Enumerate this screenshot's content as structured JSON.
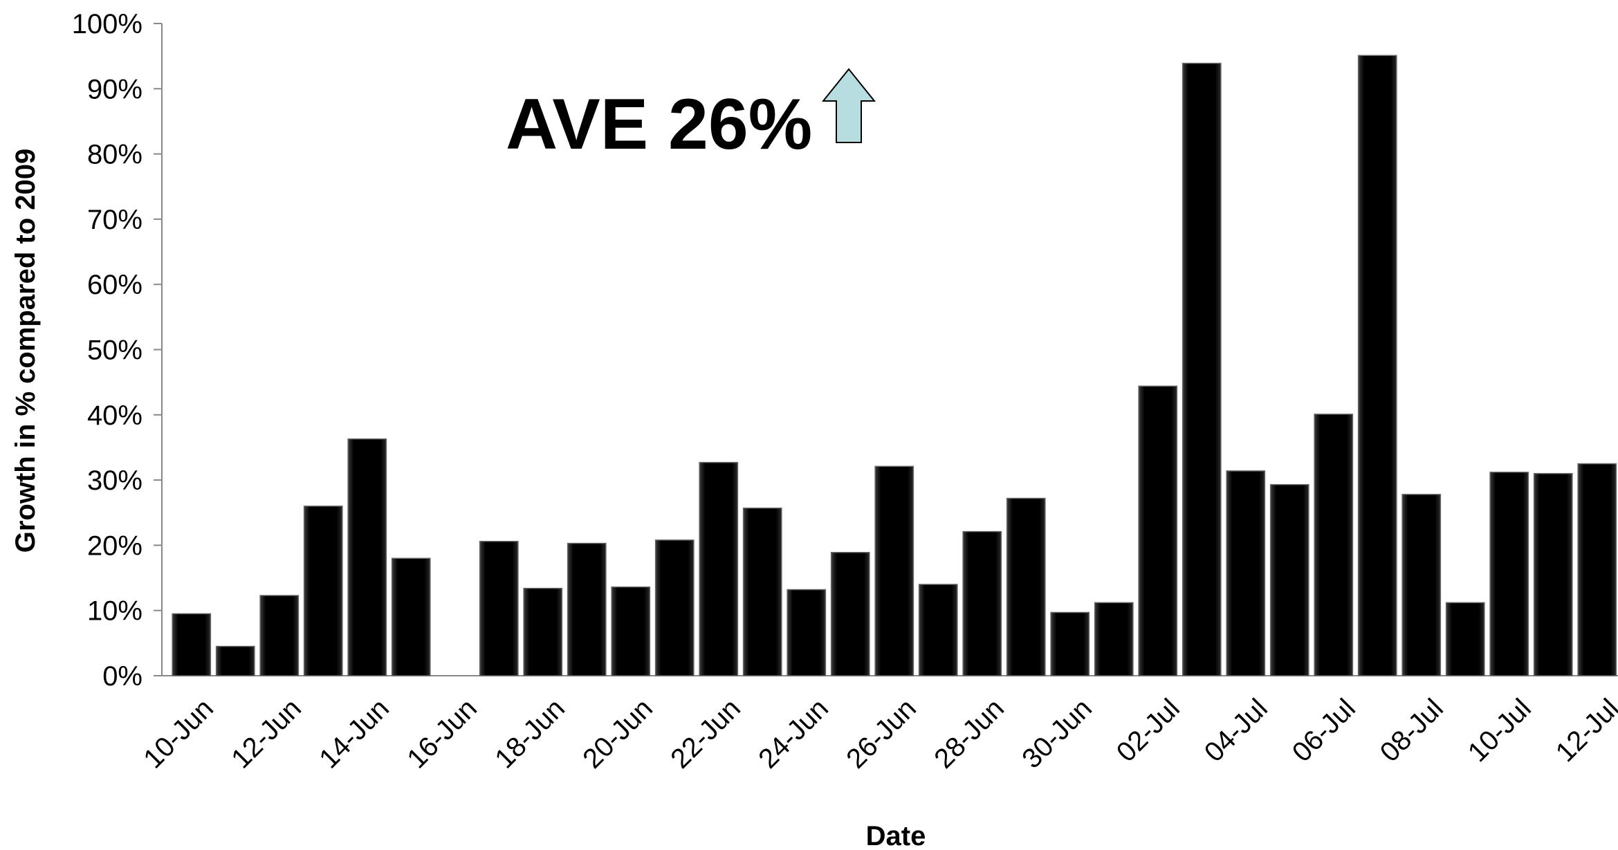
{
  "chart_data": {
    "type": "bar",
    "annotation": "AVE 26%",
    "x_label": "Date",
    "y_label": "Growth in % compared to 2009",
    "categories": [
      "10-Jun",
      null,
      "12-Jun",
      null,
      "14-Jun",
      null,
      "16-Jun",
      null,
      "18-Jun",
      null,
      "20-Jun",
      null,
      "22-Jun",
      null,
      "24-Jun",
      null,
      "26-Jun",
      null,
      "28-Jun",
      null,
      "30-Jun",
      null,
      "02-Jul",
      null,
      "04-Jul",
      null,
      "06-Jul",
      null,
      "08-Jul",
      null,
      "10-Jul",
      null,
      "12-Jul"
    ],
    "values": [
      9.5,
      4.5,
      12.3,
      26,
      36.3,
      18,
      null,
      20.6,
      13.4,
      20.3,
      13.6,
      20.8,
      32.7,
      25.7,
      13.2,
      18.9,
      32.1,
      14,
      22.1,
      27.2,
      9.7,
      11.2,
      44.4,
      93.9,
      31.4,
      29.3,
      40.1,
      95.1,
      27.8,
      11.2,
      31.2,
      31,
      32.5
    ],
    "color": "#0d0d0d",
    "ylim": [
      0,
      100
    ],
    "yticks": [
      {
        "value": 0,
        "label": "0%"
      },
      {
        "value": 10,
        "label": "10%"
      },
      {
        "value": 20,
        "label": "20%"
      },
      {
        "value": 30,
        "label": "30%"
      },
      {
        "value": 40,
        "label": "40%"
      },
      {
        "value": 50,
        "label": "50%"
      },
      {
        "value": 60,
        "label": "60%"
      },
      {
        "value": 70,
        "label": "70%"
      },
      {
        "value": 80,
        "label": "80%"
      },
      {
        "value": 90,
        "label": "90%"
      },
      {
        "value": 100,
        "label": "100%"
      }
    ],
    "grid": false
  }
}
